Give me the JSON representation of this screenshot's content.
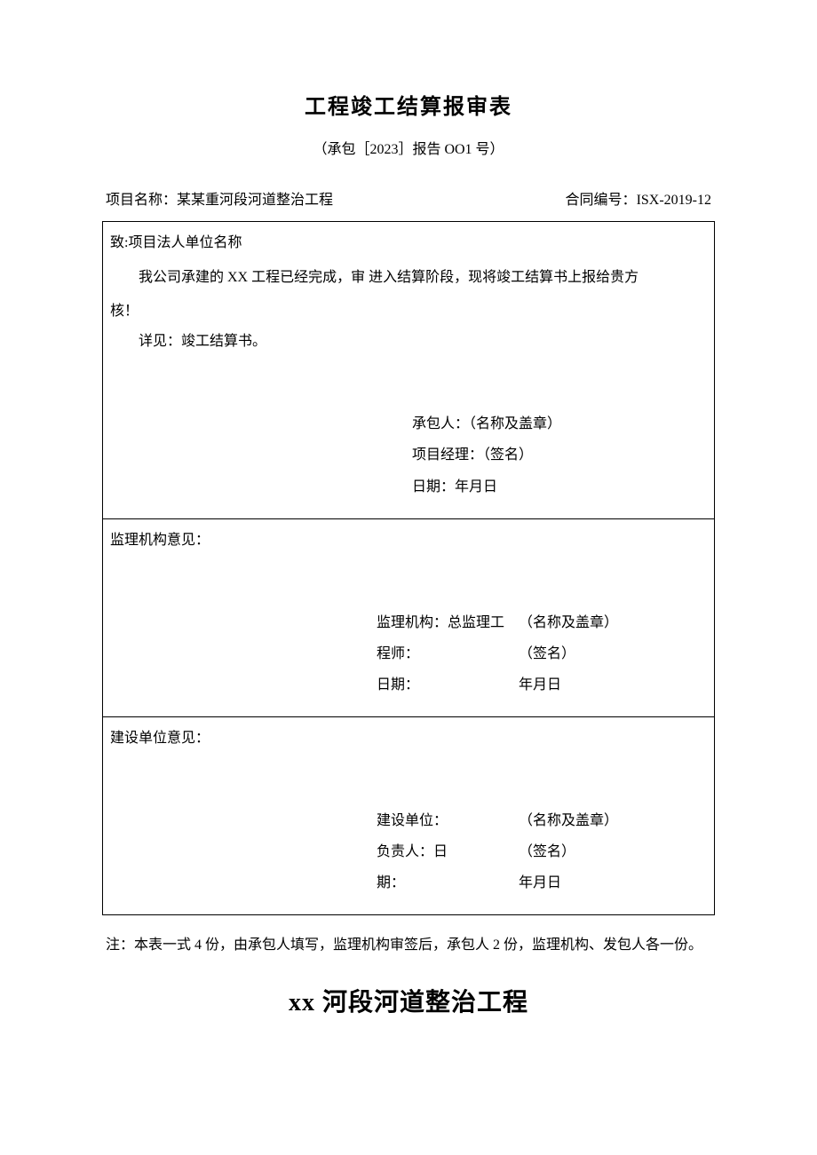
{
  "title": "工程竣工结算报审表",
  "subtitle": "（承包［2023］报告 OO1 号）",
  "header": {
    "project_label": "项目名称：",
    "project_name": "某某重河段河道整治工程",
    "contract_label": "合同编号：",
    "contract_no": "ISX-2019-12"
  },
  "section1": {
    "addressee": "致:项目法人单位名称",
    "body_line1": "我公司承建的 XX 工程已经完成，审  进入结算阶段，现将竣工结算书上报给贵方",
    "body_line2": "核！",
    "detail": "详见：竣工结算书。",
    "sig_contractor": "承包人：（名称及盖章）",
    "sig_manager": "项目经理：（签名）",
    "sig_date": "日期：年月日"
  },
  "section2": {
    "label": "监理机构意见：",
    "left1": "监理机构：总监理工",
    "left2": "程师：",
    "left3": "日期：",
    "right1": "（名称及盖章）",
    "right2": "（签名）",
    "right3": "年月日"
  },
  "section3": {
    "label": "建设单位意见：",
    "left1": "建设单位：",
    "left2": "负责人：日",
    "left3": "期：",
    "right1": "（名称及盖章）",
    "right2": "（签名）",
    "right3": "年月日"
  },
  "footnote": "注：本表一式 4 份，由承包人填写，监理机构审签后，承包人 2 份，监理机构、发包人各一份。",
  "footer_title": "xx 河段河道整治工程"
}
